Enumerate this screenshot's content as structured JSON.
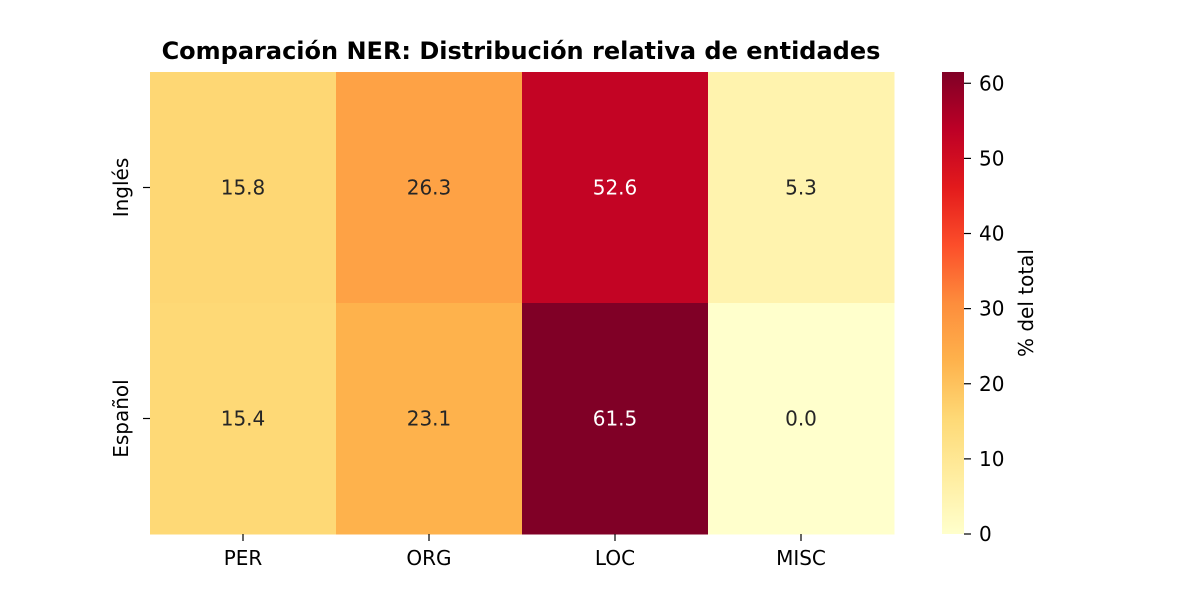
{
  "chart_data": {
    "type": "heatmap",
    "title": "Comparación NER: Distribución relativa de entidades",
    "columns": [
      "PER",
      "ORG",
      "LOC",
      "MISC"
    ],
    "rows": [
      "Inglés",
      "Español"
    ],
    "values": [
      [
        15.8,
        26.3,
        52.6,
        5.3
      ],
      [
        15.4,
        23.1,
        61.5,
        0.0
      ]
    ],
    "value_format": "0.1f",
    "colormap": "YlOrRd",
    "color_range": [
      0,
      61.5
    ],
    "colorbar": {
      "label": "% del total",
      "ticks": [
        0,
        10,
        20,
        30,
        40,
        50,
        60
      ]
    },
    "colorbar_stops": [
      "#ffffcc",
      "#ffeda0",
      "#fed976",
      "#feb24c",
      "#fd8d3c",
      "#fc4e2a",
      "#e31a1c",
      "#bd0026",
      "#800026"
    ],
    "text_colors": {
      "dark": "#262626",
      "light": "#ffffff"
    }
  }
}
